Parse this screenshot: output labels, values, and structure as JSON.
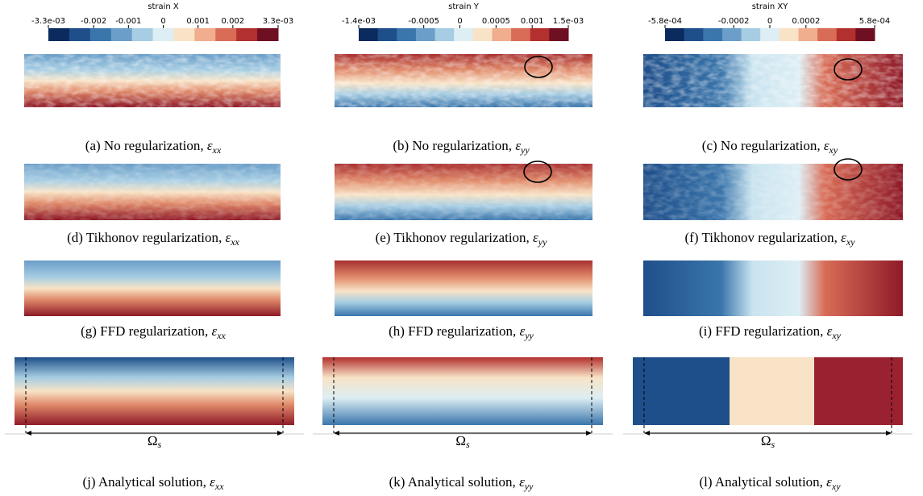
{
  "colorbars": [
    {
      "title": "strain X",
      "lim": [
        -0.0033,
        0.0033
      ],
      "ticks": [
        {
          "value": -0.0033,
          "label": "-3.3e-03"
        },
        -0.002,
        -0.001,
        0,
        0.001,
        0.002,
        {
          "value": 0.0033,
          "label": "3.3e-03"
        }
      ]
    },
    {
      "title": "strain Y",
      "lim": [
        -0.0014,
        0.0015
      ],
      "ticks": [
        {
          "value": -0.0014,
          "label": "-1.4e-03"
        },
        -0.0005,
        0,
        0.0005,
        0.001,
        {
          "value": 0.0015,
          "label": "1.5e-03"
        }
      ]
    },
    {
      "title": "strain XY",
      "lim": [
        -0.00058,
        0.00058
      ],
      "ticks": [
        {
          "value": -0.00058,
          "label": "-5.8e-04"
        },
        -0.0002,
        0,
        0.0002,
        {
          "value": 0.00058,
          "label": "5.8e-04"
        }
      ]
    }
  ],
  "panels": [
    {
      "caption": {
        "text": "(a) No regularization, ",
        "symbol": "ε",
        "sub": "xx"
      }
    },
    {
      "caption": {
        "text": "(b) No regularization, ",
        "symbol": "ε",
        "sub": "yy"
      }
    },
    {
      "caption": {
        "text": "(c) No regularization, ",
        "symbol": "ε",
        "sub": "xy"
      }
    },
    {
      "caption": {
        "text": "(d) Tikhonov regularization, ",
        "symbol": "ε",
        "sub": "xx"
      }
    },
    {
      "caption": {
        "text": "(e) Tikhonov regularization, ",
        "symbol": "ε",
        "sub": "yy"
      }
    },
    {
      "caption": {
        "text": "(f) Tikhonov regularization, ",
        "symbol": "ε",
        "sub": "xy"
      }
    },
    {
      "caption": {
        "text": "(g) FFD regularization, ",
        "symbol": "ε",
        "sub": "xx"
      }
    },
    {
      "caption": {
        "text": "(h) FFD regularization, ",
        "symbol": "ε",
        "sub": "yy"
      }
    },
    {
      "caption": {
        "text": "(i) FFD regularization, ",
        "symbol": "ε",
        "sub": "xy"
      }
    },
    {
      "caption": {
        "text": "(j) Analytical solution, ",
        "symbol": "ε",
        "sub": "xx"
      }
    },
    {
      "caption": {
        "text": "(k) Analytical solution, ",
        "symbol": "ε",
        "sub": "yy"
      }
    },
    {
      "caption": {
        "text": "(l) Analytical solution, ",
        "symbol": "ε",
        "sub": "xy"
      }
    }
  ],
  "domain_label": {
    "symbol": "Ω",
    "sub": "s"
  }
}
